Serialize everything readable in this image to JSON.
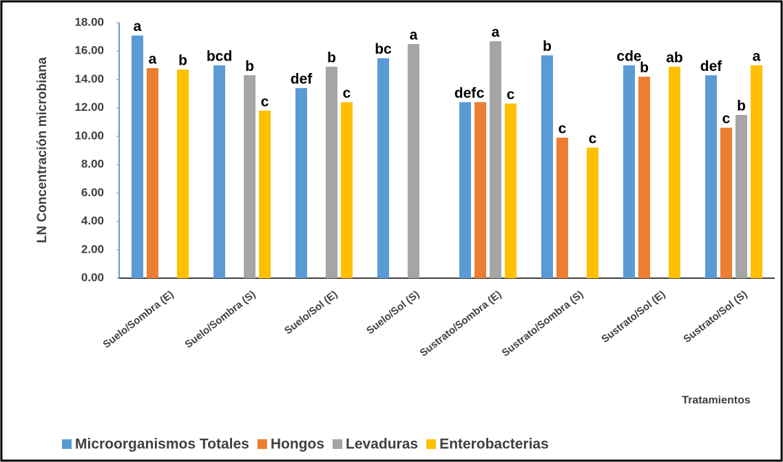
{
  "chart_data": {
    "type": "bar",
    "y_axis_label": "LN Concentración microbiana",
    "x_axis_label": "Tratamientos",
    "categories": [
      "Suelo/Sombra (E)",
      "Suelo/Sombra (S)",
      "Suelo/Sol (E)",
      "Suelo/Sol (S)",
      "Sustrato/Sombra (E)",
      "Sustrato/Sombra (S)",
      "Sustrato/Sol (E)",
      "Sustrato/Sol (S)"
    ],
    "series": [
      {
        "name": "Microorganismos Totales",
        "color": "#5b9bd5",
        "values": [
          17.1,
          15.0,
          13.4,
          15.5,
          12.4,
          15.7,
          15.0,
          14.3
        ],
        "significance": [
          "a",
          "bcd",
          "def",
          "bc",
          "def",
          "b",
          "cde",
          "def"
        ]
      },
      {
        "name": "Hongos",
        "color": "#ed7d31",
        "values": [
          14.8,
          null,
          null,
          null,
          12.4,
          9.9,
          14.2,
          10.6
        ],
        "significance": [
          "a",
          null,
          null,
          null,
          "c",
          "c",
          "b",
          "c"
        ]
      },
      {
        "name": "Levaduras",
        "color": "#a5a5a5",
        "values": [
          null,
          14.3,
          14.9,
          16.5,
          16.7,
          null,
          null,
          11.5
        ],
        "significance": [
          null,
          "b",
          "b",
          "a",
          "a",
          null,
          null,
          "b"
        ]
      },
      {
        "name": "Enterobacterias",
        "color": "#ffc000",
        "values": [
          14.7,
          11.8,
          12.4,
          null,
          12.3,
          9.2,
          14.9,
          15.0
        ],
        "significance": [
          "b",
          "c",
          "c",
          null,
          "c",
          "c",
          "ab",
          "a"
        ]
      }
    ],
    "ylim": [
      0,
      18
    ],
    "yticks": [
      {
        "value": 0,
        "label": "0.00"
      },
      {
        "value": 2,
        "label": "2.00"
      },
      {
        "value": 4,
        "label": "4.00"
      },
      {
        "value": 6,
        "label": "6.00"
      },
      {
        "value": 8,
        "label": "8.00"
      },
      {
        "value": 10,
        "label": "10.00"
      },
      {
        "value": 12,
        "label": "12.00"
      },
      {
        "value": 14,
        "label": "14.00"
      },
      {
        "value": 16,
        "label": "16.00"
      },
      {
        "value": 18,
        "label": "18.00"
      }
    ],
    "grid": false,
    "legend": "bottom"
  }
}
